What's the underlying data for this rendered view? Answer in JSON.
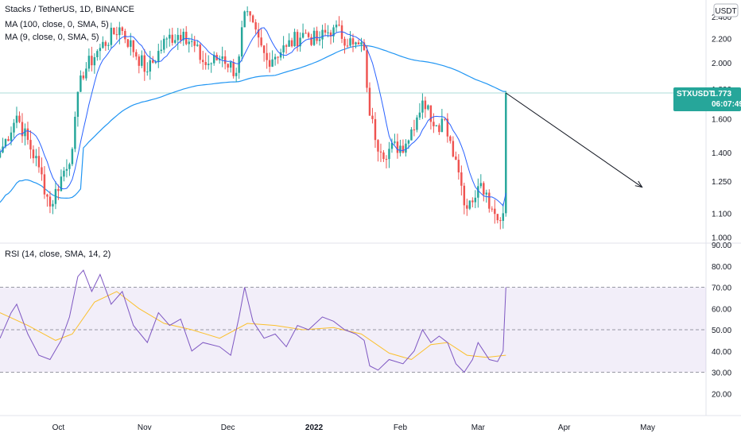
{
  "legend": {
    "title": "Stacks / TetherUS, 1D, BINANCE",
    "ma100": "MA (100, close, 0, SMA, 5)",
    "ma9": "MA (9, close, 0, SMA, 5)",
    "rsi": "RSI (14, close, SMA, 14, 2)"
  },
  "currency_label": "USDT",
  "price_badge": {
    "symbol": "STXUSDT",
    "price": "1.773",
    "timer": "06:07:49",
    "value": 1.773
  },
  "colors": {
    "up": "#26a69a",
    "down": "#ef5350",
    "ma9": "#2962ff",
    "ma100": "#2196f3",
    "rsi": "#7e57c2",
    "rsi_ma": "#fbc02d",
    "band": "#7e57c2",
    "badge": "#26a69a"
  },
  "chart_data": [
    {
      "type": "candlestick",
      "title": "Stacks / TetherUS, 1D, BINANCE",
      "y_scale": "log",
      "ylim": [
        0.98,
        2.5
      ],
      "yticks": [
        "1.000",
        "1.100",
        "1.250",
        "1.400",
        "1.600",
        "1.800",
        "2.000",
        "2.200",
        "2.400"
      ],
      "ytick_values": [
        1.0,
        1.1,
        1.25,
        1.4,
        1.6,
        1.8,
        2.0,
        2.2,
        2.4
      ],
      "xticks": [
        "Oct",
        "Nov",
        "Dec",
        "2022",
        "Feb",
        "Mar",
        "Apr",
        "May"
      ],
      "x_range": [
        "2021-09-10",
        "2022-05-22"
      ],
      "xtick_dates": [
        "2021-10-01",
        "2021-11-01",
        "2021-12-01",
        "2022-01-01",
        "2022-02-01",
        "2022-03-01",
        "2022-04-01",
        "2022-05-01"
      ],
      "key_close_points": [
        {
          "date": "2021-09-10",
          "close": 1.4
        },
        {
          "date": "2021-09-16",
          "close": 1.62
        },
        {
          "date": "2021-09-24",
          "close": 1.32
        },
        {
          "date": "2021-09-28",
          "close": 1.13
        },
        {
          "date": "2021-10-06",
          "close": 1.42
        },
        {
          "date": "2021-10-09",
          "close": 1.9
        },
        {
          "date": "2021-10-16",
          "close": 2.12
        },
        {
          "date": "2021-10-23",
          "close": 2.3
        },
        {
          "date": "2021-11-02",
          "close": 1.93
        },
        {
          "date": "2021-11-09",
          "close": 2.2
        },
        {
          "date": "2021-11-15",
          "close": 2.26
        },
        {
          "date": "2021-11-23",
          "close": 1.98
        },
        {
          "date": "2021-11-29",
          "close": 2.05
        },
        {
          "date": "2021-12-04",
          "close": 1.92
        },
        {
          "date": "2021-12-07",
          "close": 2.45
        },
        {
          "date": "2021-12-15",
          "close": 2.02
        },
        {
          "date": "2021-12-22",
          "close": 2.13
        },
        {
          "date": "2021-12-28",
          "close": 2.25
        },
        {
          "date": "2022-01-02",
          "close": 2.18
        },
        {
          "date": "2022-01-08",
          "close": 2.3
        },
        {
          "date": "2022-01-15",
          "close": 2.15
        },
        {
          "date": "2022-01-19",
          "close": 2.1
        },
        {
          "date": "2022-01-21",
          "close": 1.62
        },
        {
          "date": "2022-01-25",
          "close": 1.4
        },
        {
          "date": "2022-02-03",
          "close": 1.45
        },
        {
          "date": "2022-02-09",
          "close": 1.72
        },
        {
          "date": "2022-02-14",
          "close": 1.56
        },
        {
          "date": "2022-02-17",
          "close": 1.6
        },
        {
          "date": "2022-02-21",
          "close": 1.36
        },
        {
          "date": "2022-02-25",
          "close": 1.12
        },
        {
          "date": "2022-02-28",
          "close": 1.17
        },
        {
          "date": "2022-03-02",
          "close": 1.24
        },
        {
          "date": "2022-03-05",
          "close": 1.12
        },
        {
          "date": "2022-03-08",
          "close": 1.07
        },
        {
          "date": "2022-03-10",
          "close": 1.1
        },
        {
          "date": "2022-03-11",
          "close": 1.773
        }
      ],
      "arrow": {
        "from": {
          "date": "2022-03-11",
          "price": 1.773
        },
        "to": {
          "date": "2022-04-29",
          "price": 1.22
        }
      }
    },
    {
      "type": "line",
      "title": "RSI (14, close, SMA, 14, 2)",
      "ylim": [
        10,
        90
      ],
      "yticks": [
        "20.00",
        "30.00",
        "40.00",
        "50.00",
        "60.00",
        "70.00",
        "80.00",
        "90.00"
      ],
      "ytick_values": [
        20,
        30,
        40,
        50,
        60,
        70,
        80,
        90
      ],
      "band": [
        30,
        70
      ],
      "midline": 50,
      "series": [
        {
          "points": [
            {
              "date": "2021-09-10",
              "v": 46
            },
            {
              "date": "2021-09-14",
              "v": 58
            },
            {
              "date": "2021-09-16",
              "v": 62
            },
            {
              "date": "2021-09-20",
              "v": 48
            },
            {
              "date": "2021-09-24",
              "v": 38
            },
            {
              "date": "2021-09-28",
              "v": 36
            },
            {
              "date": "2021-10-02",
              "v": 45
            },
            {
              "date": "2021-10-05",
              "v": 56
            },
            {
              "date": "2021-10-08",
              "v": 75
            },
            {
              "date": "2021-10-10",
              "v": 78
            },
            {
              "date": "2021-10-13",
              "v": 68
            },
            {
              "date": "2021-10-16",
              "v": 76
            },
            {
              "date": "2021-10-20",
              "v": 62
            },
            {
              "date": "2021-10-24",
              "v": 68
            },
            {
              "date": "2021-10-28",
              "v": 52
            },
            {
              "date": "2021-11-02",
              "v": 44
            },
            {
              "date": "2021-11-06",
              "v": 58
            },
            {
              "date": "2021-11-10",
              "v": 52
            },
            {
              "date": "2021-11-14",
              "v": 55
            },
            {
              "date": "2021-11-18",
              "v": 40
            },
            {
              "date": "2021-11-22",
              "v": 44
            },
            {
              "date": "2021-11-28",
              "v": 42
            },
            {
              "date": "2021-12-02",
              "v": 38
            },
            {
              "date": "2021-12-05",
              "v": 56
            },
            {
              "date": "2021-12-07",
              "v": 70
            },
            {
              "date": "2021-12-10",
              "v": 54
            },
            {
              "date": "2021-12-14",
              "v": 46
            },
            {
              "date": "2021-12-18",
              "v": 48
            },
            {
              "date": "2021-12-22",
              "v": 42
            },
            {
              "date": "2021-12-26",
              "v": 52
            },
            {
              "date": "2021-12-30",
              "v": 50
            },
            {
              "date": "2022-01-04",
              "v": 56
            },
            {
              "date": "2022-01-08",
              "v": 54
            },
            {
              "date": "2022-01-12",
              "v": 50
            },
            {
              "date": "2022-01-16",
              "v": 48
            },
            {
              "date": "2022-01-19",
              "v": 45
            },
            {
              "date": "2022-01-21",
              "v": 33
            },
            {
              "date": "2022-01-24",
              "v": 31
            },
            {
              "date": "2022-01-28",
              "v": 36
            },
            {
              "date": "2022-02-02",
              "v": 34
            },
            {
              "date": "2022-02-06",
              "v": 40
            },
            {
              "date": "2022-02-09",
              "v": 50
            },
            {
              "date": "2022-02-12",
              "v": 44
            },
            {
              "date": "2022-02-15",
              "v": 47
            },
            {
              "date": "2022-02-18",
              "v": 44
            },
            {
              "date": "2022-02-21",
              "v": 34
            },
            {
              "date": "2022-02-24",
              "v": 30
            },
            {
              "date": "2022-02-27",
              "v": 36
            },
            {
              "date": "2022-03-01",
              "v": 44
            },
            {
              "date": "2022-03-03",
              "v": 40
            },
            {
              "date": "2022-03-05",
              "v": 36
            },
            {
              "date": "2022-03-08",
              "v": 35
            },
            {
              "date": "2022-03-10",
              "v": 40
            },
            {
              "date": "2022-03-11",
              "v": 70
            }
          ]
        },
        {
          "points": [
            {
              "date": "2021-09-10",
              "v": 58
            },
            {
              "date": "2021-09-20",
              "v": 52
            },
            {
              "date": "2021-09-30",
              "v": 45
            },
            {
              "date": "2021-10-06",
              "v": 48
            },
            {
              "date": "2021-10-14",
              "v": 63
            },
            {
              "date": "2021-10-22",
              "v": 68
            },
            {
              "date": "2021-10-30",
              "v": 60
            },
            {
              "date": "2021-11-08",
              "v": 53
            },
            {
              "date": "2021-11-18",
              "v": 50
            },
            {
              "date": "2021-11-28",
              "v": 46
            },
            {
              "date": "2021-12-08",
              "v": 53
            },
            {
              "date": "2021-12-18",
              "v": 52
            },
            {
              "date": "2021-12-28",
              "v": 50
            },
            {
              "date": "2022-01-08",
              "v": 51
            },
            {
              "date": "2022-01-18",
              "v": 48
            },
            {
              "date": "2022-01-28",
              "v": 39
            },
            {
              "date": "2022-02-05",
              "v": 36
            },
            {
              "date": "2022-02-12",
              "v": 43
            },
            {
              "date": "2022-02-18",
              "v": 44
            },
            {
              "date": "2022-02-25",
              "v": 38
            },
            {
              "date": "2022-03-04",
              "v": 37
            },
            {
              "date": "2022-03-11",
              "v": 38
            }
          ]
        }
      ]
    }
  ]
}
